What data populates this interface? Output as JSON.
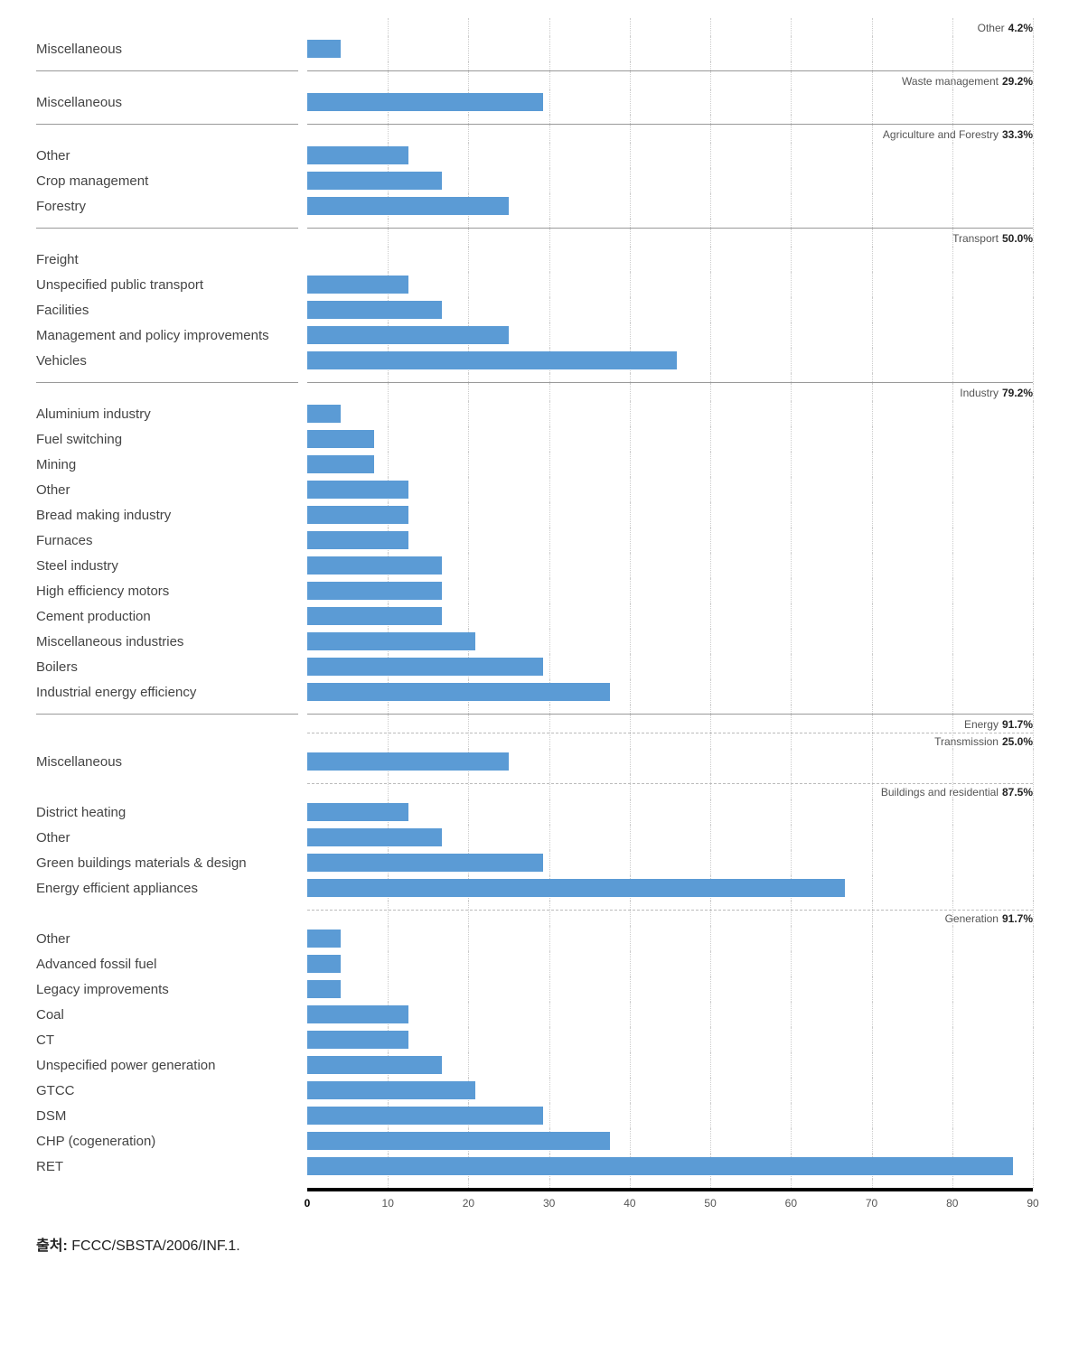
{
  "chart": {
    "type": "bar",
    "bar_color": "#5b9bd5",
    "grid_color": "#cccccc",
    "axis_color": "#000000",
    "section_divider_color": "#999999",
    "sub_divider_color": "#bbbbbb",
    "label_color": "#444444",
    "label_fontsize": 15,
    "heading_fontsize": 12,
    "heading_color": "#555555",
    "pct_color": "#222222",
    "xlim": [
      0,
      90
    ],
    "xtick_step": 10,
    "xticks": [
      0,
      10,
      20,
      30,
      40,
      50,
      60,
      70,
      80,
      90
    ]
  },
  "sections": [
    {
      "title": "Other",
      "pct": "4.2%",
      "rows": [
        {
          "label": "Miscellaneous",
          "value": 4.2
        }
      ]
    },
    {
      "title": "Waste management",
      "pct": "29.2%",
      "rows": [
        {
          "label": "Miscellaneous",
          "value": 29.2
        }
      ]
    },
    {
      "title": "Agriculture and Forestry",
      "pct": "33.3%",
      "rows": [
        {
          "label": "Other",
          "value": 12.5
        },
        {
          "label": "Crop management",
          "value": 16.7
        },
        {
          "label": "Forestry",
          "value": 25
        }
      ]
    },
    {
      "title": "Transport",
      "pct": "50.0%",
      "rows": [
        {
          "label": "Freight",
          "value": 0
        },
        {
          "label": "Unspecified public transport",
          "value": 12.5
        },
        {
          "label": "Facilities",
          "value": 16.7
        },
        {
          "label": "Management and policy improvements",
          "value": 25
        },
        {
          "label": "Vehicles",
          "value": 45.8
        }
      ]
    },
    {
      "title": "Industry",
      "pct": "79.2%",
      "rows": [
        {
          "label": "Aluminium industry",
          "value": 4.2
        },
        {
          "label": "Fuel switching",
          "value": 8.3
        },
        {
          "label": "Mining",
          "value": 8.3
        },
        {
          "label": "Other",
          "value": 12.5
        },
        {
          "label": "Bread making industry",
          "value": 12.5
        },
        {
          "label": "Furnaces",
          "value": 12.5
        },
        {
          "label": "Steel industry",
          "value": 16.7
        },
        {
          "label": "High efficiency motors",
          "value": 16.7
        },
        {
          "label": "Cement production",
          "value": 16.7
        },
        {
          "label": "Miscellaneous industries",
          "value": 20.8
        },
        {
          "label": "Boilers",
          "value": 29.2
        },
        {
          "label": "Industrial energy efficiency",
          "value": 37.5
        }
      ]
    },
    {
      "title": "Energy",
      "pct": "91.7%",
      "subsections": [
        {
          "title": "Transmission",
          "pct": "25.0%",
          "rows": [
            {
              "label": "Miscellaneous",
              "value": 25
            }
          ]
        },
        {
          "title": "Buildings and residential",
          "pct": "87.5%",
          "rows": [
            {
              "label": "District heating",
              "value": 12.5
            },
            {
              "label": "Other",
              "value": 16.7
            },
            {
              "label": "Green buildings materials & design",
              "value": 29.2
            },
            {
              "label": "Energy efficient appliances",
              "value": 66.7
            }
          ]
        },
        {
          "title": "Generation",
          "pct": "91.7%",
          "rows": [
            {
              "label": "Other",
              "value": 4.2
            },
            {
              "label": "Advanced fossil fuel",
              "value": 4.2
            },
            {
              "label": "Legacy improvements",
              "value": 4.2
            },
            {
              "label": "Coal",
              "value": 12.5
            },
            {
              "label": "CT",
              "value": 12.5
            },
            {
              "label": "Unspecified power generation",
              "value": 16.7
            },
            {
              "label": "GTCC",
              "value": 20.8
            },
            {
              "label": "DSM",
              "value": 29.2
            },
            {
              "label": "CHP (cogeneration)",
              "value": 37.5
            },
            {
              "label": "RET",
              "value": 87.5
            }
          ]
        }
      ]
    }
  ],
  "source": {
    "label": "출처:",
    "text": "FCCC/SBSTA/2006/INF.1."
  }
}
